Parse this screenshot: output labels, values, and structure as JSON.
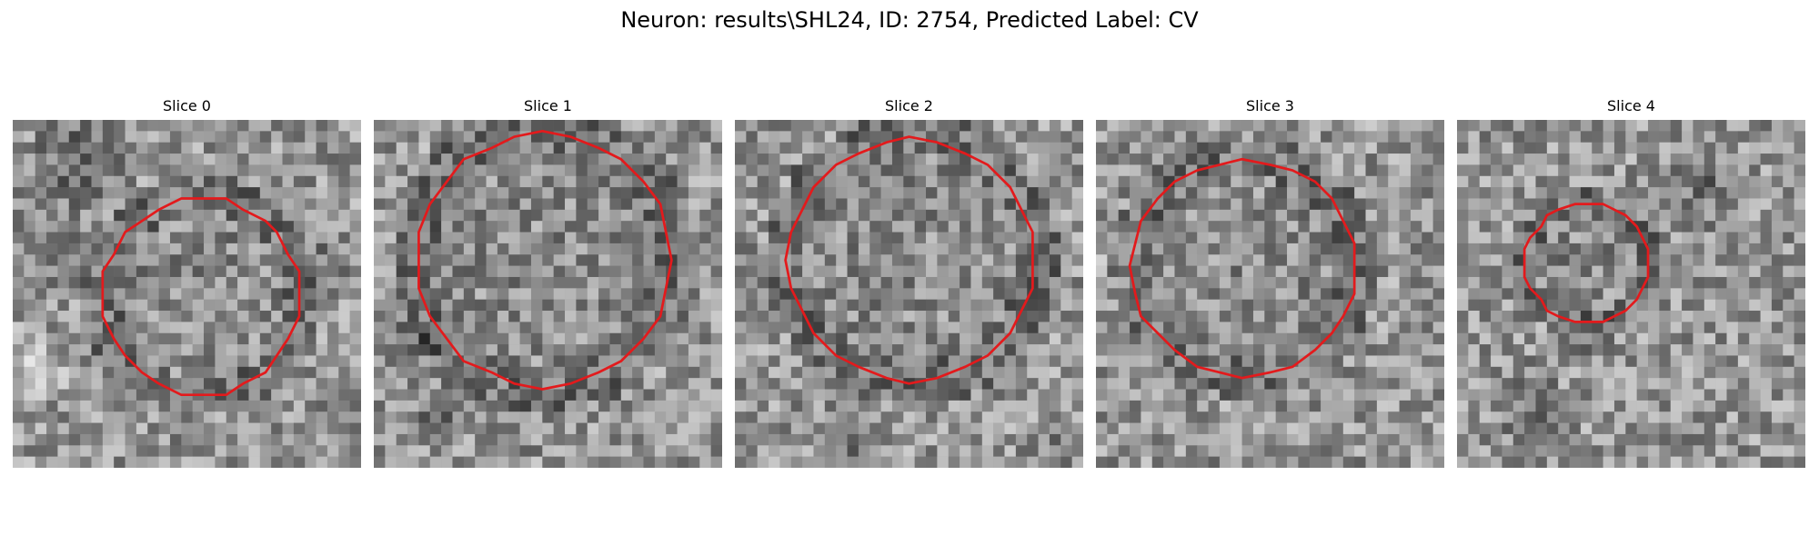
{
  "figure": {
    "title": "Neuron: results\\SHL24, ID: 2754, Predicted Label: CV"
  },
  "slices": [
    {
      "title": "Slice 0",
      "outline_color": "#e31a1c"
    },
    {
      "title": "Slice 1",
      "outline_color": "#e31a1c"
    },
    {
      "title": "Slice 2",
      "outline_color": "#e31a1c"
    },
    {
      "title": "Slice 3",
      "outline_color": "#e31a1c"
    },
    {
      "title": "Slice 4",
      "outline_color": "#e31a1c"
    }
  ]
}
